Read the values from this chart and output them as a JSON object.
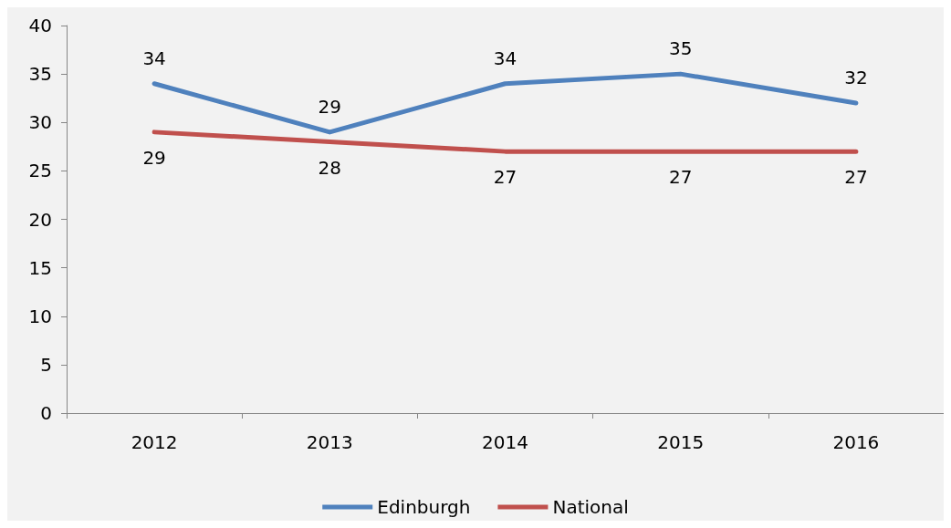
{
  "chart_data": {
    "type": "line",
    "categories": [
      "2012",
      "2013",
      "2014",
      "2015",
      "2016"
    ],
    "series": [
      {
        "name": "Edinburgh",
        "color": "#4f81bd",
        "values": [
          34,
          29,
          34,
          35,
          32
        ]
      },
      {
        "name": "National",
        "color": "#c0504d",
        "values": [
          29,
          28,
          27,
          27,
          27
        ]
      }
    ],
    "ylim": [
      0,
      40
    ],
    "yticks": [
      0,
      5,
      10,
      15,
      20,
      25,
      30,
      35,
      40
    ],
    "grid": false,
    "legend": "bottom",
    "data_labels": true,
    "marker": "none",
    "line_style": "solid"
  }
}
